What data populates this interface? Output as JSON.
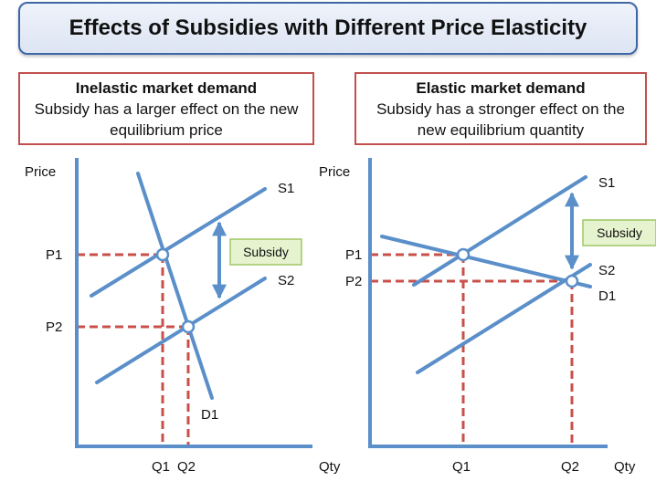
{
  "title": "Effects of Subsidies with Different Price Elasticity",
  "colors": {
    "curve": "#5a8fca",
    "dashed": "#c9504a",
    "axis": "#5a8fca",
    "subsidy_fill": "#e6f3cf",
    "subsidy_border": "#9fc765",
    "box_border": "#c0504d"
  },
  "panels": [
    {
      "heading": "Inelastic market demand",
      "description": "Subsidy has a larger effect on the new equilibrium price",
      "y_axis_label": "Price",
      "x_axis_label": "Qty",
      "labels": {
        "s1": "S1",
        "s2": "S2",
        "d1": "D1",
        "p1": "P1",
        "p2": "P2",
        "q1": "Q1",
        "q2": "Q2",
        "subsidy": "Subsidy"
      }
    },
    {
      "heading": "Elastic market demand",
      "description": "Subsidy has a stronger effect on the new equilibrium quantity",
      "y_axis_label": "Price",
      "x_axis_label": "Qty",
      "labels": {
        "s1": "S1",
        "s2": "S2",
        "d1": "D1",
        "p1": "P1",
        "p2": "P2",
        "q1": "Q1",
        "q2": "Q2",
        "subsidy": "Subsidy"
      }
    }
  ]
}
